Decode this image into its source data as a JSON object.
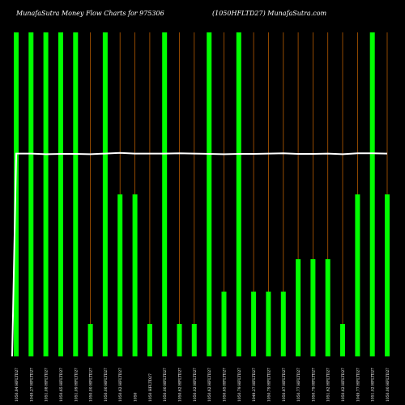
{
  "header": {
    "title_left": "MunafaSutra  Money Flow  Charts for 975306",
    "title_right": "(1050HFLTD27) MunafaSutra.com"
  },
  "colors": {
    "background": "#000000",
    "bar": "#00ff00",
    "stem": "#b35900",
    "line": "#ffffff",
    "text": "#ffffff"
  },
  "chart_data": {
    "type": "bar",
    "title": "MunafaSutra  Money Flow  Charts for 975306 (1050HFLTD27) MunafaSutra.com",
    "categories": [
      "1050.84 HFLTD27",
      "1049.27 HFLTD27",
      "1051.08 HFLTD27",
      "1050.65 HFLTD27",
      "1051.09 HFLTD27",
      "1050.00 HFLTD27",
      "1050.00 HFLTD27",
      "1050.62 HFLTD27",
      "1050",
      "1050 HFLTD27",
      "1050.00 HFLTD27",
      "1050.62 HFLTD27",
      "1050.02 HFLTD27",
      "1050.62 HFLTD27",
      "1050.65 HFLTD27",
      "1050.79 HFLTD27",
      "1049.27 HFLTD27",
      "1050.79 HFLTD27",
      "1050.87 HFLTD27",
      "1050.77 HFLTD27",
      "1050.79 HFLTD27",
      "1051.62 HFLTD27",
      "1050.62 HFLTD27",
      "1049.77 HFLTD27",
      "1051.02 HFLTD27",
      "1050.00 HFLTD27"
    ],
    "values": [
      10,
      10,
      10,
      10,
      10,
      1,
      10,
      5,
      5,
      1,
      10,
      1,
      1,
      10,
      2,
      10,
      2,
      2,
      2,
      3,
      3,
      3,
      1,
      5,
      10,
      5
    ],
    "ylim": [
      0,
      10
    ],
    "line": {
      "name": "",
      "start_value": 0,
      "values": [
        6.26,
        6.26,
        6.24,
        6.25,
        6.25,
        6.24,
        6.26,
        6.28,
        6.26,
        6.26,
        6.26,
        6.27,
        6.26,
        6.25,
        6.24,
        6.25,
        6.25,
        6.26,
        6.27,
        6.25,
        6.25,
        6.26,
        6.24,
        6.27,
        6.27,
        6.26
      ]
    },
    "grid": false,
    "legend": "none"
  }
}
